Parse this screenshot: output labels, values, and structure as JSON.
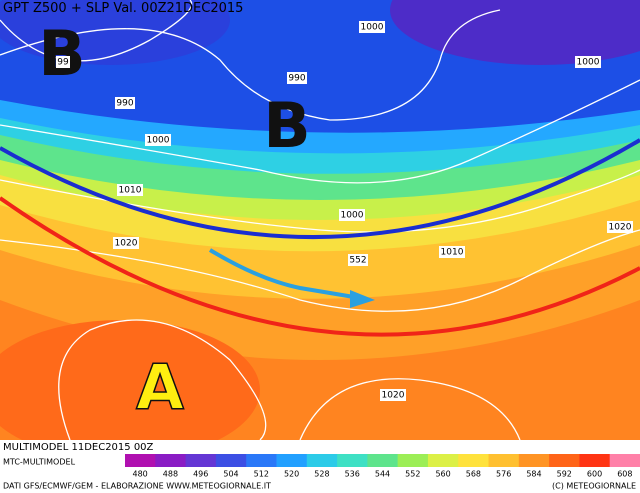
{
  "header": {
    "title": "GPT Z500 + SLP Val. 00Z21DEC2015"
  },
  "map": {
    "pressure_centers": [
      "B",
      "B",
      "A"
    ],
    "isobar_labels": [
      "99",
      "1000",
      "990",
      "990",
      "1000",
      "1000",
      "1010",
      "1000",
      "552",
      "1010",
      "1020",
      "1020",
      "1020"
    ]
  },
  "footer": {
    "run": "MULTIMODEL 11DEC2015 00Z",
    "model": "MTC-MULTIMODEL",
    "credits": "DATI GFS/ECMWF/GEM - ELABORAZIONE WWW.METEOGIORNALE.IT",
    "copyright": "(C) METEOGIORNALE"
  },
  "colorbar": {
    "ticks": [
      480,
      488,
      496,
      504,
      512,
      520,
      528,
      536,
      544,
      552,
      560,
      568,
      576,
      584,
      592,
      600,
      608
    ],
    "colors": [
      "#b010b0",
      "#8a1cc4",
      "#6436d4",
      "#3c4fe4",
      "#2a78f8",
      "#22a0ff",
      "#2ccbe8",
      "#3ee0c4",
      "#5ee48c",
      "#9cee56",
      "#dcf046",
      "#ffe23c",
      "#ffc030",
      "#ff9424",
      "#ff6418",
      "#ff3414",
      "#ff80a8"
    ]
  }
}
